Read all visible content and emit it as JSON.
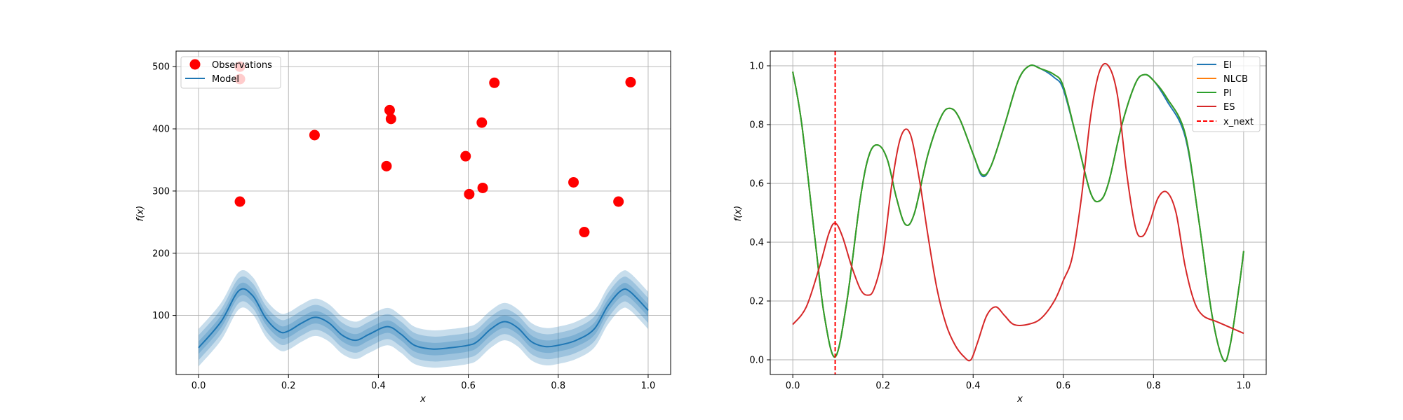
{
  "chart_data": [
    {
      "type": "scatter",
      "title": "",
      "xlabel": "x",
      "ylabel": "f(x)",
      "xlim": [
        -0.05,
        1.05
      ],
      "ylim": [
        5,
        525
      ],
      "xticks": [
        0.0,
        0.2,
        0.4,
        0.6,
        0.8,
        1.0
      ],
      "xtick_labels": [
        "0.0",
        "0.2",
        "0.4",
        "0.6",
        "0.8",
        "1.0"
      ],
      "yticks": [
        100,
        200,
        300,
        400,
        500
      ],
      "ytick_labels": [
        "100",
        "200",
        "300",
        "400",
        "500"
      ],
      "grid": true,
      "legend_position": "upper-left",
      "observations": {
        "name": "Observations",
        "color": "#ff0000",
        "x": [
          0.092,
          0.092,
          0.092,
          0.258,
          0.418,
          0.425,
          0.428,
          0.594,
          0.602,
          0.632,
          0.63,
          0.658,
          0.834,
          0.858,
          0.934,
          0.961
        ],
        "y": [
          283,
          480,
          500,
          390,
          340,
          430,
          416,
          356,
          295,
          305,
          410,
          474,
          314,
          234,
          283,
          475
        ]
      },
      "model": {
        "name": "Model",
        "color": "#1f77b4",
        "x": [
          0.0,
          0.05,
          0.09,
          0.12,
          0.15,
          0.18,
          0.2,
          0.23,
          0.26,
          0.29,
          0.32,
          0.35,
          0.38,
          0.42,
          0.45,
          0.48,
          0.52,
          0.56,
          0.6,
          0.62,
          0.65,
          0.68,
          0.71,
          0.74,
          0.77,
          0.8,
          0.84,
          0.88,
          0.91,
          0.94,
          0.96,
          1.0
        ],
        "mean": [
          48,
          90,
          140,
          132,
          95,
          74,
          75,
          88,
          97,
          88,
          68,
          60,
          70,
          82,
          70,
          52,
          46,
          48,
          52,
          58,
          78,
          90,
          80,
          58,
          50,
          52,
          60,
          78,
          115,
          140,
          138,
          108
        ],
        "band_widths": [
          10,
          20,
          30
        ]
      }
    },
    {
      "type": "line",
      "title": "",
      "xlabel": "x",
      "ylabel": "f(x)",
      "xlim": [
        -0.05,
        1.05
      ],
      "ylim": [
        -0.05,
        1.05
      ],
      "xticks": [
        0.0,
        0.2,
        0.4,
        0.6,
        0.8,
        1.0
      ],
      "xtick_labels": [
        "0.0",
        "0.2",
        "0.4",
        "0.6",
        "0.8",
        "1.0"
      ],
      "yticks": [
        0.0,
        0.2,
        0.4,
        0.6,
        0.8,
        1.0
      ],
      "ytick_labels": [
        "0.0",
        "0.2",
        "0.4",
        "0.6",
        "0.8",
        "1.0"
      ],
      "grid": true,
      "legend_position": "upper-right",
      "x_next": {
        "name": "x_next",
        "x": 0.094,
        "color": "#ff0000"
      },
      "series": [
        {
          "name": "EI",
          "color": "#1f77b4",
          "x": [
            0.0,
            0.02,
            0.05,
            0.07,
            0.094,
            0.12,
            0.15,
            0.17,
            0.19,
            0.21,
            0.23,
            0.25,
            0.27,
            0.3,
            0.33,
            0.35,
            0.37,
            0.4,
            0.42,
            0.44,
            0.47,
            0.5,
            0.525,
            0.55,
            0.58,
            0.6,
            0.63,
            0.66,
            0.68,
            0.7,
            0.73,
            0.76,
            0.78,
            0.8,
            0.83,
            0.87,
            0.9,
            0.93,
            0.955,
            0.97,
            0.99,
            1.0
          ],
          "y": [
            0.98,
            0.8,
            0.4,
            0.15,
            0.01,
            0.2,
            0.55,
            0.7,
            0.73,
            0.68,
            0.55,
            0.46,
            0.5,
            0.7,
            0.83,
            0.855,
            0.82,
            0.7,
            0.625,
            0.66,
            0.8,
            0.95,
            1.0,
            0.99,
            0.96,
            0.92,
            0.75,
            0.57,
            0.54,
            0.6,
            0.8,
            0.94,
            0.97,
            0.95,
            0.88,
            0.76,
            0.48,
            0.15,
            0.0,
            0.05,
            0.25,
            0.37
          ]
        },
        {
          "name": "NLCB",
          "color": "#ff7f0e",
          "x": [
            0.0,
            0.02,
            0.05,
            0.07,
            0.094,
            0.12,
            0.15,
            0.17,
            0.19,
            0.21,
            0.23,
            0.25,
            0.27,
            0.3,
            0.33,
            0.35,
            0.37,
            0.4,
            0.42,
            0.44,
            0.47,
            0.5,
            0.525,
            0.55,
            0.58,
            0.6,
            0.63,
            0.66,
            0.68,
            0.7,
            0.73,
            0.76,
            0.78,
            0.8,
            0.83,
            0.87,
            0.9,
            0.93,
            0.955,
            0.97,
            0.99,
            1.0
          ],
          "y": [
            0.98,
            0.8,
            0.4,
            0.15,
            0.01,
            0.2,
            0.55,
            0.7,
            0.73,
            0.68,
            0.55,
            0.46,
            0.5,
            0.7,
            0.83,
            0.855,
            0.82,
            0.7,
            0.63,
            0.66,
            0.8,
            0.95,
            1.0,
            0.99,
            0.97,
            0.93,
            0.75,
            0.57,
            0.54,
            0.6,
            0.8,
            0.94,
            0.97,
            0.95,
            0.89,
            0.77,
            0.48,
            0.15,
            0.0,
            0.05,
            0.25,
            0.37
          ]
        },
        {
          "name": "PI",
          "color": "#2ca02c",
          "x": [
            0.0,
            0.02,
            0.05,
            0.07,
            0.094,
            0.12,
            0.15,
            0.17,
            0.19,
            0.21,
            0.23,
            0.25,
            0.27,
            0.3,
            0.33,
            0.35,
            0.37,
            0.4,
            0.42,
            0.44,
            0.47,
            0.5,
            0.525,
            0.55,
            0.58,
            0.6,
            0.63,
            0.66,
            0.68,
            0.7,
            0.73,
            0.76,
            0.78,
            0.8,
            0.83,
            0.87,
            0.9,
            0.93,
            0.955,
            0.97,
            0.99,
            1.0
          ],
          "y": [
            0.98,
            0.8,
            0.4,
            0.15,
            0.01,
            0.2,
            0.55,
            0.7,
            0.73,
            0.68,
            0.55,
            0.46,
            0.5,
            0.7,
            0.83,
            0.855,
            0.82,
            0.7,
            0.63,
            0.66,
            0.8,
            0.95,
            1.0,
            0.99,
            0.97,
            0.93,
            0.75,
            0.57,
            0.54,
            0.6,
            0.8,
            0.94,
            0.97,
            0.95,
            0.89,
            0.77,
            0.48,
            0.15,
            0.0,
            0.05,
            0.25,
            0.37
          ]
        },
        {
          "name": "ES",
          "color": "#d62728",
          "x": [
            0.0,
            0.03,
            0.06,
            0.08,
            0.094,
            0.11,
            0.13,
            0.15,
            0.165,
            0.18,
            0.2,
            0.22,
            0.24,
            0.26,
            0.28,
            0.3,
            0.32,
            0.34,
            0.36,
            0.38,
            0.395,
            0.41,
            0.43,
            0.45,
            0.47,
            0.49,
            0.52,
            0.55,
            0.58,
            0.6,
            0.62,
            0.64,
            0.66,
            0.68,
            0.7,
            0.72,
            0.74,
            0.76,
            0.775,
            0.79,
            0.81,
            0.83,
            0.85,
            0.87,
            0.89,
            0.91,
            0.94,
            0.97,
            1.0
          ],
          "y": [
            0.12,
            0.18,
            0.32,
            0.43,
            0.465,
            0.42,
            0.32,
            0.24,
            0.22,
            0.24,
            0.36,
            0.6,
            0.76,
            0.77,
            0.62,
            0.42,
            0.24,
            0.12,
            0.05,
            0.01,
            0.0,
            0.06,
            0.15,
            0.18,
            0.15,
            0.12,
            0.12,
            0.14,
            0.2,
            0.27,
            0.35,
            0.55,
            0.82,
            0.98,
            1.0,
            0.9,
            0.64,
            0.45,
            0.42,
            0.46,
            0.55,
            0.57,
            0.5,
            0.32,
            0.2,
            0.15,
            0.13,
            0.11,
            0.09
          ]
        }
      ]
    }
  ]
}
